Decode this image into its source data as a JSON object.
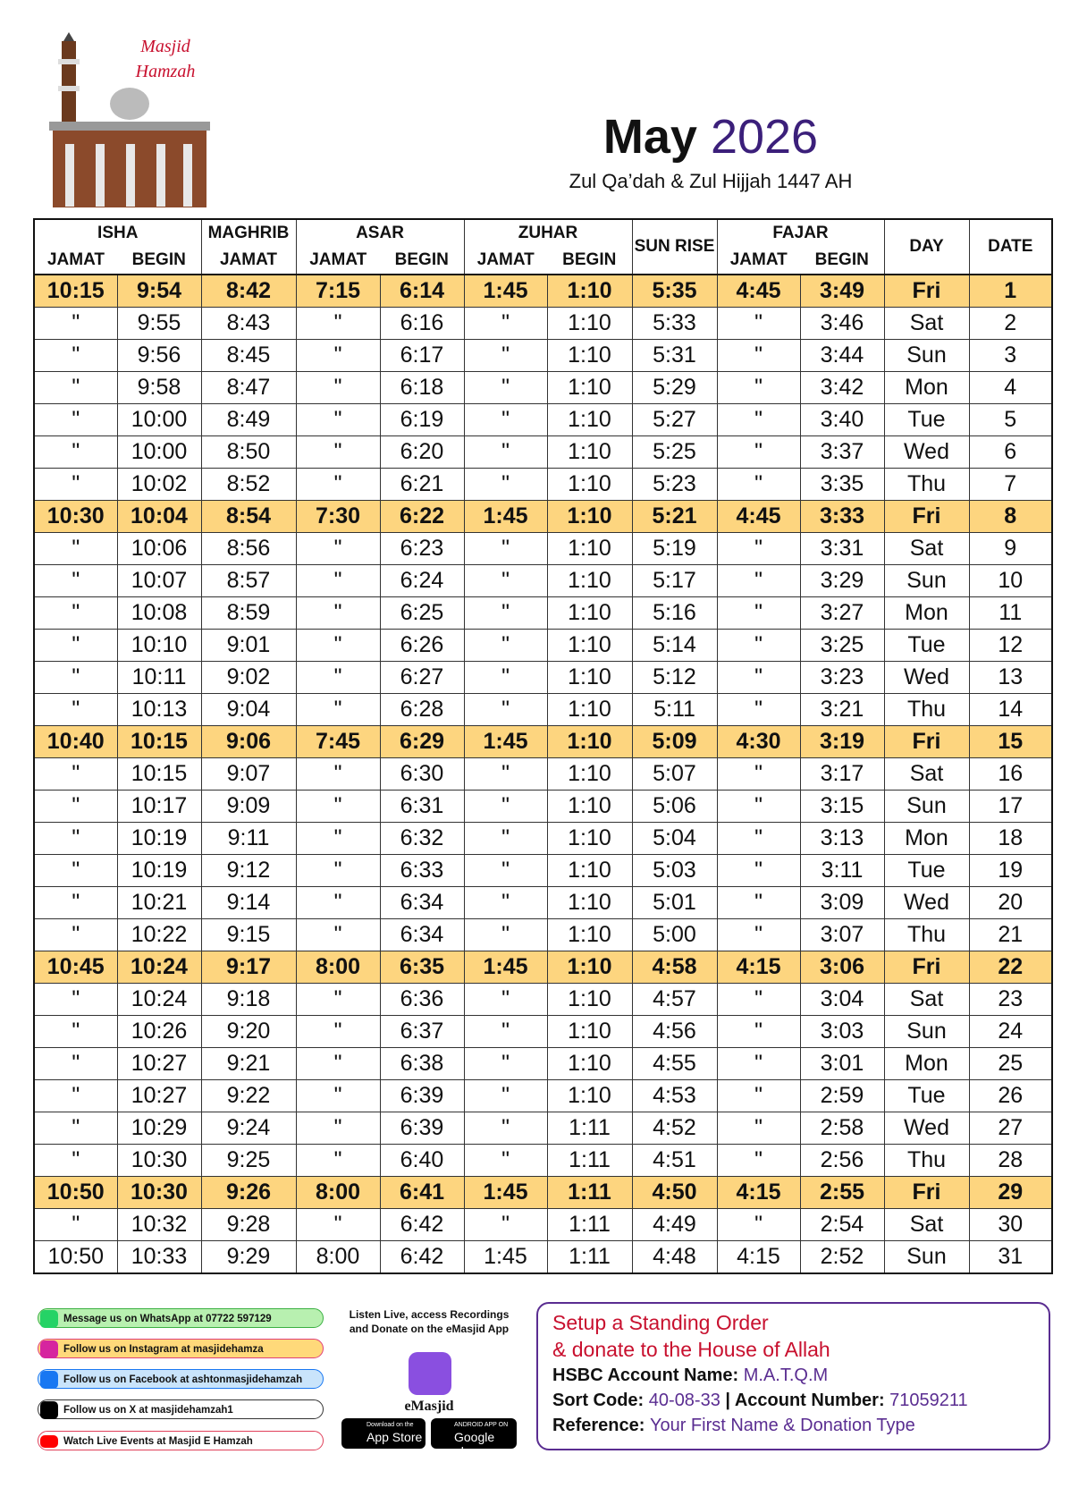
{
  "header": {
    "logo_text": [
      "Masjid",
      "Hamzah"
    ],
    "month": "May",
    "year": "2026",
    "subtitle": "Zul Qa’dah & Zul Hijjah 1447 AH"
  },
  "table": {
    "groups": [
      "ISHA",
      "MAGHRIB",
      "ASAR",
      "ZUHAR",
      "SUN RISE",
      "FAJAR",
      "DAY",
      "DATE"
    ],
    "subheaders": [
      "JAMAT",
      "BEGIN",
      "JAMAT",
      "JAMAT",
      "BEGIN",
      "JAMAT",
      "BEGIN",
      "JAMAT",
      "BEGIN"
    ],
    "rows": [
      {
        "highlight": true,
        "cells": [
          "10:15",
          "9:54",
          "8:42",
          "7:15",
          "6:14",
          "1:45",
          "1:10",
          "5:35",
          "4:45",
          "3:49",
          "Fri",
          "1"
        ]
      },
      {
        "cells": [
          "\"",
          "9:55",
          "8:43",
          "\"",
          "6:16",
          "\"",
          "1:10",
          "5:33",
          "\"",
          "3:46",
          "Sat",
          "2"
        ]
      },
      {
        "cells": [
          "\"",
          "9:56",
          "8:45",
          "\"",
          "6:17",
          "\"",
          "1:10",
          "5:31",
          "\"",
          "3:44",
          "Sun",
          "3"
        ]
      },
      {
        "cells": [
          "\"",
          "9:58",
          "8:47",
          "\"",
          "6:18",
          "\"",
          "1:10",
          "5:29",
          "\"",
          "3:42",
          "Mon",
          "4"
        ]
      },
      {
        "cells": [
          "\"",
          "10:00",
          "8:49",
          "\"",
          "6:19",
          "\"",
          "1:10",
          "5:27",
          "\"",
          "3:40",
          "Tue",
          "5"
        ]
      },
      {
        "cells": [
          "\"",
          "10:00",
          "8:50",
          "\"",
          "6:20",
          "\"",
          "1:10",
          "5:25",
          "\"",
          "3:37",
          "Wed",
          "6"
        ]
      },
      {
        "cells": [
          "\"",
          "10:02",
          "8:52",
          "\"",
          "6:21",
          "\"",
          "1:10",
          "5:23",
          "\"",
          "3:35",
          "Thu",
          "7"
        ]
      },
      {
        "highlight": true,
        "cells": [
          "10:30",
          "10:04",
          "8:54",
          "7:30",
          "6:22",
          "1:45",
          "1:10",
          "5:21",
          "4:45",
          "3:33",
          "Fri",
          "8"
        ]
      },
      {
        "cells": [
          "\"",
          "10:06",
          "8:56",
          "\"",
          "6:23",
          "\"",
          "1:10",
          "5:19",
          "\"",
          "3:31",
          "Sat",
          "9"
        ]
      },
      {
        "cells": [
          "\"",
          "10:07",
          "8:57",
          "\"",
          "6:24",
          "\"",
          "1:10",
          "5:17",
          "\"",
          "3:29",
          "Sun",
          "10"
        ]
      },
      {
        "cells": [
          "\"",
          "10:08",
          "8:59",
          "\"",
          "6:25",
          "\"",
          "1:10",
          "5:16",
          "\"",
          "3:27",
          "Mon",
          "11"
        ]
      },
      {
        "cells": [
          "\"",
          "10:10",
          "9:01",
          "\"",
          "6:26",
          "\"",
          "1:10",
          "5:14",
          "\"",
          "3:25",
          "Tue",
          "12"
        ]
      },
      {
        "cells": [
          "\"",
          "10:11",
          "9:02",
          "\"",
          "6:27",
          "\"",
          "1:10",
          "5:12",
          "\"",
          "3:23",
          "Wed",
          "13"
        ]
      },
      {
        "cells": [
          "\"",
          "10:13",
          "9:04",
          "\"",
          "6:28",
          "\"",
          "1:10",
          "5:11",
          "\"",
          "3:21",
          "Thu",
          "14"
        ]
      },
      {
        "highlight": true,
        "cells": [
          "10:40",
          "10:15",
          "9:06",
          "7:45",
          "6:29",
          "1:45",
          "1:10",
          "5:09",
          "4:30",
          "3:19",
          "Fri",
          "15"
        ]
      },
      {
        "cells": [
          "\"",
          "10:15",
          "9:07",
          "\"",
          "6:30",
          "\"",
          "1:10",
          "5:07",
          "\"",
          "3:17",
          "Sat",
          "16"
        ]
      },
      {
        "cells": [
          "\"",
          "10:17",
          "9:09",
          "\"",
          "6:31",
          "\"",
          "1:10",
          "5:06",
          "\"",
          "3:15",
          "Sun",
          "17"
        ]
      },
      {
        "cells": [
          "\"",
          "10:19",
          "9:11",
          "\"",
          "6:32",
          "\"",
          "1:10",
          "5:04",
          "\"",
          "3:13",
          "Mon",
          "18"
        ]
      },
      {
        "cells": [
          "\"",
          "10:19",
          "9:12",
          "\"",
          "6:33",
          "\"",
          "1:10",
          "5:03",
          "\"",
          "3:11",
          "Tue",
          "19"
        ]
      },
      {
        "cells": [
          "\"",
          "10:21",
          "9:14",
          "\"",
          "6:34",
          "\"",
          "1:10",
          "5:01",
          "\"",
          "3:09",
          "Wed",
          "20"
        ]
      },
      {
        "cells": [
          "\"",
          "10:22",
          "9:15",
          "\"",
          "6:34",
          "\"",
          "1:10",
          "5:00",
          "\"",
          "3:07",
          "Thu",
          "21"
        ]
      },
      {
        "highlight": true,
        "cells": [
          "10:45",
          "10:24",
          "9:17",
          "8:00",
          "6:35",
          "1:45",
          "1:10",
          "4:58",
          "4:15",
          "3:06",
          "Fri",
          "22"
        ]
      },
      {
        "cells": [
          "\"",
          "10:24",
          "9:18",
          "\"",
          "6:36",
          "\"",
          "1:10",
          "4:57",
          "\"",
          "3:04",
          "Sat",
          "23"
        ]
      },
      {
        "cells": [
          "\"",
          "10:26",
          "9:20",
          "\"",
          "6:37",
          "\"",
          "1:10",
          "4:56",
          "\"",
          "3:03",
          "Sun",
          "24"
        ]
      },
      {
        "cells": [
          "\"",
          "10:27",
          "9:21",
          "\"",
          "6:38",
          "\"",
          "1:10",
          "4:55",
          "\"",
          "3:01",
          "Mon",
          "25"
        ]
      },
      {
        "cells": [
          "\"",
          "10:27",
          "9:22",
          "\"",
          "6:39",
          "\"",
          "1:10",
          "4:53",
          "\"",
          "2:59",
          "Tue",
          "26"
        ]
      },
      {
        "cells": [
          "\"",
          "10:29",
          "9:24",
          "\"",
          "6:39",
          "\"",
          "1:11",
          "4:52",
          "\"",
          "2:58",
          "Wed",
          "27"
        ]
      },
      {
        "cells": [
          "\"",
          "10:30",
          "9:25",
          "\"",
          "6:40",
          "\"",
          "1:11",
          "4:51",
          "\"",
          "2:56",
          "Thu",
          "28"
        ]
      },
      {
        "highlight": true,
        "cells": [
          "10:50",
          "10:30",
          "9:26",
          "8:00",
          "6:41",
          "1:45",
          "1:11",
          "4:50",
          "4:15",
          "2:55",
          "Fri",
          "29"
        ]
      },
      {
        "cells": [
          "\"",
          "10:32",
          "9:28",
          "\"",
          "6:42",
          "\"",
          "1:11",
          "4:49",
          "\"",
          "2:54",
          "Sat",
          "30"
        ]
      },
      {
        "cells": [
          "10:50",
          "10:33",
          "9:29",
          "8:00",
          "6:42",
          "1:45",
          "1:11",
          "4:48",
          "4:15",
          "2:52",
          "Sun",
          "31"
        ]
      }
    ]
  },
  "footer": {
    "social": [
      "Message us on WhatsApp at 07722 597129",
      "Follow us on Instagram at masjidehamza",
      "Follow us on Facebook at ashtonmasjidehamzah",
      "Follow us on X at masjidehamzah1",
      "Watch Live Events at Masjid E Hamzah"
    ],
    "app": {
      "text": "Listen Live, access Recordings and Donate on the eMasjid App",
      "name": "eMasjid",
      "apple_small": "Download on the",
      "apple_big": "App Store",
      "google_small": "ANDROID APP ON",
      "google_big": "Google play"
    },
    "donation": {
      "title": [
        "Setup a Standing Order",
        "& donate to the House of Allah"
      ],
      "account_name_label": "HSBC Account Name:",
      "account_name": "M.A.T.Q.M",
      "sort_code_label": "Sort Code:",
      "sort_code": "40-08-33",
      "account_number_label": "| Account Number:",
      "account_number": "71059211",
      "reference_label": "Reference:",
      "reference": "Your First Name & Donation Type"
    }
  }
}
